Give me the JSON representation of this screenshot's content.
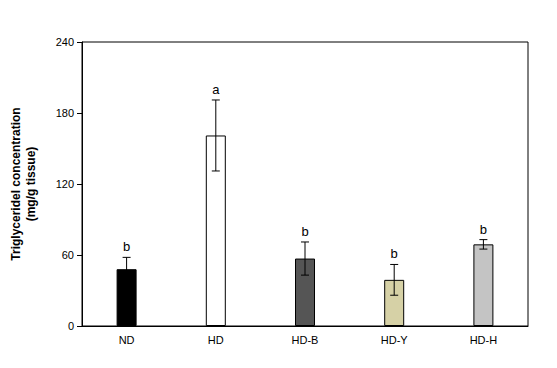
{
  "chart_data": {
    "type": "bar",
    "ylabel": "Triglyceridel concentration\n(mg/g tissue)",
    "categories": [
      "ND",
      "HD",
      "HD-B",
      "HD-Y",
      "HD-H"
    ],
    "values": [
      48,
      161,
      57,
      39,
      69
    ],
    "errors": [
      10,
      30,
      14,
      13,
      4
    ],
    "annotations": [
      "b",
      "a",
      "b",
      "b",
      "b"
    ],
    "colors": [
      "#000000",
      "#ffffff",
      "#555555",
      "#d6d1a6",
      "#c4c4c4"
    ],
    "ylim": [
      0,
      240
    ],
    "yticks": [
      0,
      60,
      120,
      180,
      240
    ],
    "grid": false
  }
}
